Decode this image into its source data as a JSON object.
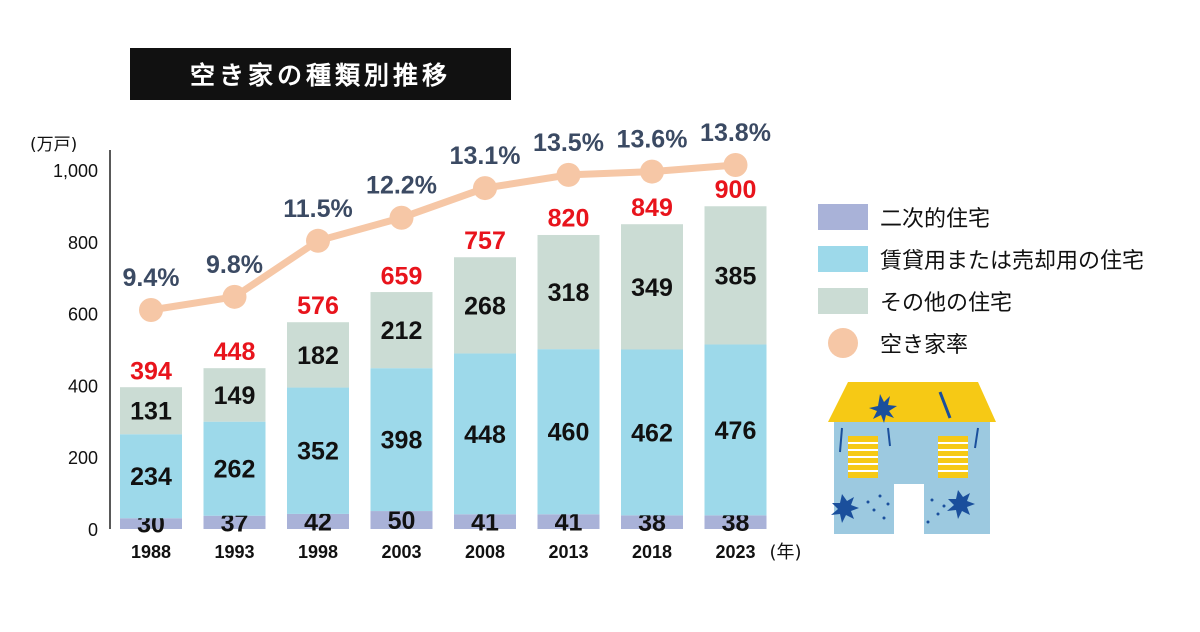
{
  "title": "空き家の種類別推移",
  "chart_data": {
    "type": "bar",
    "stacked": true,
    "categories": [
      "1988",
      "1993",
      "1998",
      "2003",
      "2008",
      "2013",
      "2018",
      "2023"
    ],
    "x_unit": "(年)",
    "y_unit": "(万戸)",
    "ylim": [
      0,
      1000
    ],
    "yticks": [
      "0",
      "200",
      "400",
      "600",
      "800",
      "1,000"
    ],
    "ytick_values": [
      0,
      200,
      400,
      600,
      800,
      1000
    ],
    "series": [
      {
        "name": "二次的住宅",
        "color": "#a9b2d8",
        "values": [
          30,
          37,
          42,
          50,
          41,
          41,
          38,
          38
        ]
      },
      {
        "name": "賃貸用または売却用の住宅",
        "color": "#9dd9ea",
        "values": [
          234,
          262,
          352,
          398,
          448,
          460,
          462,
          476
        ]
      },
      {
        "name": "その他の住宅",
        "color": "#cbdcd4",
        "values": [
          131,
          149,
          182,
          212,
          268,
          318,
          349,
          385
        ]
      }
    ],
    "totals": [
      394,
      448,
      576,
      659,
      757,
      820,
      849,
      900
    ],
    "totals_color": "#e8141c",
    "rate_series": {
      "name": "空き家率",
      "color": "#f6c7a6",
      "values": [
        9.4,
        9.8,
        11.5,
        12.2,
        13.1,
        13.5,
        13.6,
        13.8
      ],
      "labels": [
        "9.4%",
        "9.8%",
        "11.5%",
        "12.2%",
        "13.1%",
        "13.5%",
        "13.6%",
        "13.8%"
      ],
      "label_color": "#3b4a63"
    },
    "legend_position": "right"
  },
  "icons": {
    "house": "abandoned-house-icon"
  }
}
